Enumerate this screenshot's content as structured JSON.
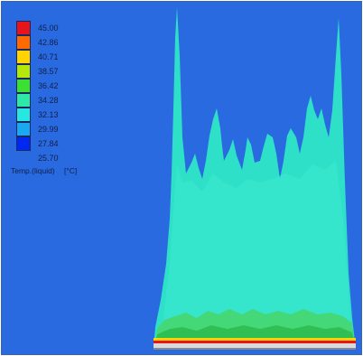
{
  "legend": {
    "quantity": "Temp.(liquid)",
    "unit": "[°C]",
    "ticks": [
      "45.00",
      "42.86",
      "40.71",
      "38.57",
      "36.42",
      "34.28",
      "32.13",
      "29.99",
      "27.84",
      "25.70"
    ],
    "colors": [
      "#e8141c",
      "#ff6a00",
      "#ffd400",
      "#b4e80a",
      "#3ce032",
      "#2ee8a6",
      "#26e8e0",
      "#1aa8f0",
      "#0028f0"
    ]
  },
  "colors": {
    "background": "#2a6ae0",
    "plume": "#2ee0c8",
    "base_green": "#3cd65a",
    "hot_band": "#e8141c"
  }
}
